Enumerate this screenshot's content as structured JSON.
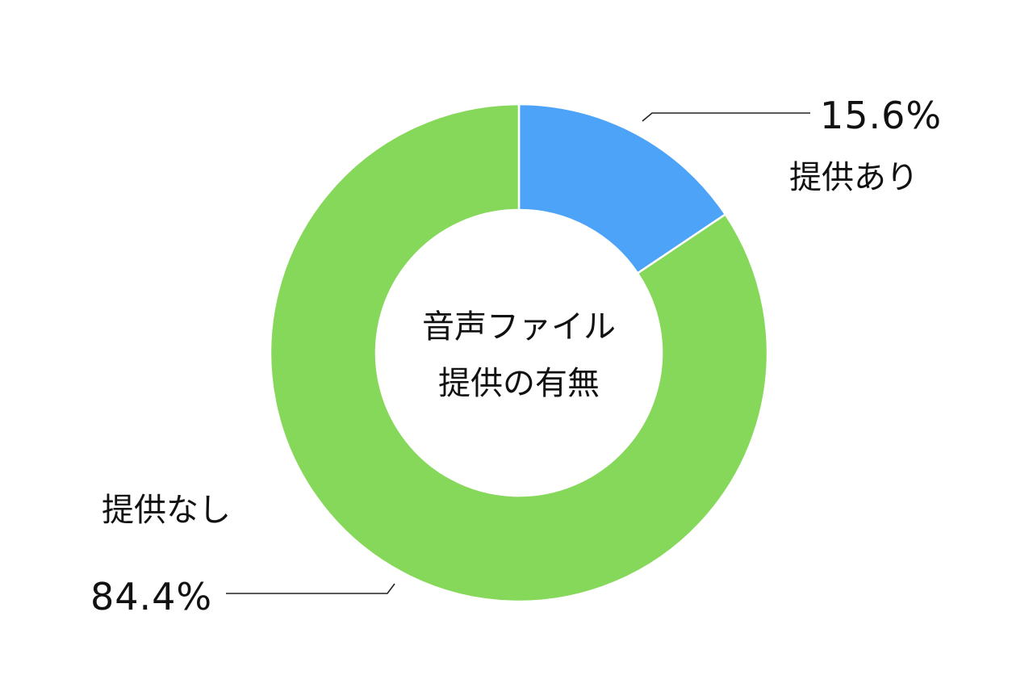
{
  "chart_data": {
    "type": "pie",
    "variant": "donut",
    "center_title": [
      "音声ファイル",
      "提供の有無"
    ],
    "series": [
      {
        "name": "提供あり",
        "value": 15.6,
        "label": "15.6%",
        "color": "#4da3f7"
      },
      {
        "name": "提供なし",
        "value": 84.4,
        "label": "84.4%",
        "color": "#86d85a"
      }
    ],
    "start_angle": "12 o'clock",
    "direction": "clockwise",
    "slice_border_color": "#ffffff",
    "leader_line_color": "#222222"
  }
}
